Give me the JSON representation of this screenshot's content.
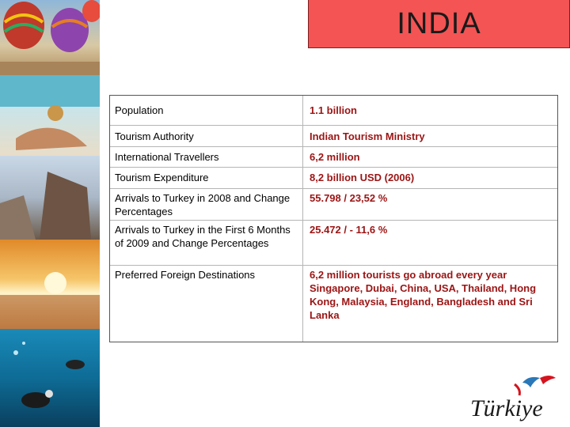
{
  "title": "INDIA",
  "rows": [
    {
      "label": "Population",
      "value": "1.1 billion"
    },
    {
      "label": "Tourism Authority",
      "value": "Indian Tourism Ministry"
    },
    {
      "label": "International Travellers",
      "value": "6,2 million"
    },
    {
      "label": "Tourism Expenditure",
      "value": "8,2 billion USD (2006)"
    },
    {
      "label": "Arrivals to Turkey in 2008 and Change Percentages",
      "value": "55.798  / 23,52 %"
    },
    {
      "label": "Arrivals to Turkey in the First 6 Months of 2009 and Change Percentages",
      "value": "25.472 / - 11,6 %"
    },
    {
      "label": "Preferred Foreign Destinations",
      "value": "6,2 million tourists go abroad every year Singapore, Dubai, China, USA, Thailand, Hong Kong, Malaysia, England, Bangladesh and Sri Lanka"
    }
  ],
  "photos": [
    "hot-air-balloons-photo",
    "beach-sunbather-photo",
    "stone-head-statues-photo",
    "sunset-over-water-photo",
    "scuba-divers-photo"
  ],
  "logo": {
    "text": "Türkiye",
    "colors": {
      "text": "#1a1a1a",
      "accent": "#d4141e",
      "bird": "#2a78b8"
    }
  },
  "colors": {
    "title_bg": "#f45454",
    "value_text": "#9c1414",
    "border": "#555555"
  }
}
